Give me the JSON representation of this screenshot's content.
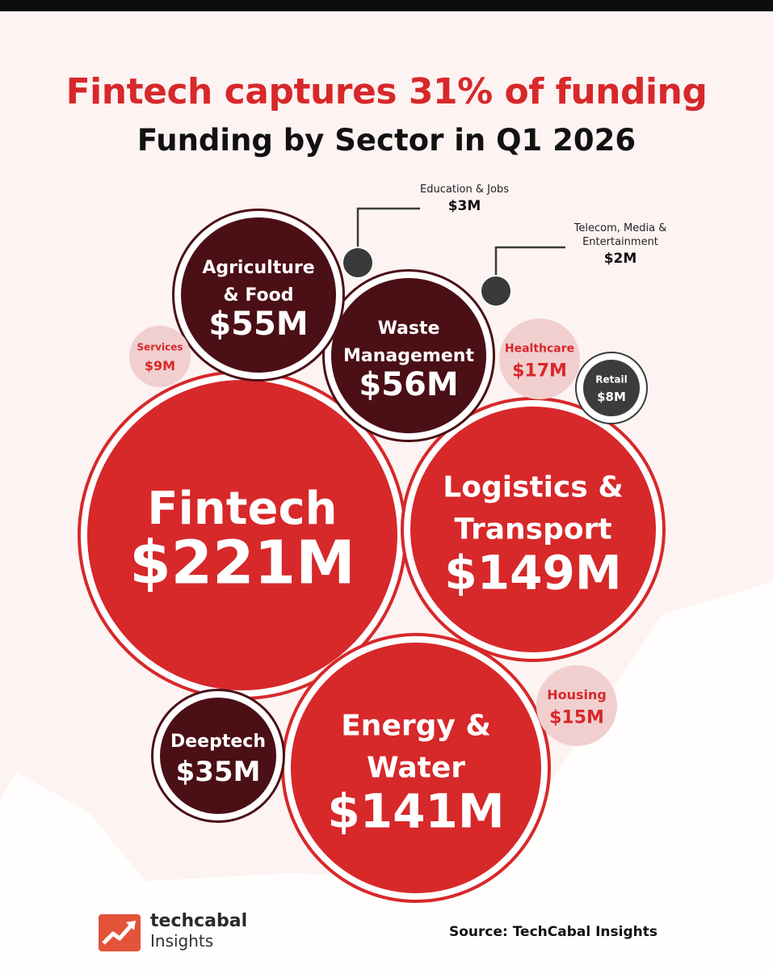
{
  "header": {
    "title": "Fintech captures 31% of funding",
    "subtitle": "Funding by Sector in Q1 2026"
  },
  "colors": {
    "red": "#d7282a",
    "dark": "#4b0f16",
    "pink": "#f2cfcf",
    "grey": "#3c3c3c",
    "title_red": "#d7282a",
    "background": "#fcf3f2"
  },
  "chart_data": {
    "type": "bubble",
    "title": "Fintech captures 31% of funding",
    "subtitle": "Funding by Sector in Q1 2026",
    "unit": "USD millions",
    "sectors": [
      {
        "label": "Fintech",
        "value_label": "$221M",
        "value": 221,
        "style": "red"
      },
      {
        "label": "Logistics & Transport",
        "value_label": "$149M",
        "value": 149,
        "style": "red"
      },
      {
        "label": "Energy & Water",
        "value_label": "$141M",
        "value": 141,
        "style": "red"
      },
      {
        "label": "Waste Management",
        "value_label": "$56M",
        "value": 56,
        "style": "dark"
      },
      {
        "label": "Agriculture & Food",
        "value_label": "$55M",
        "value": 55,
        "style": "dark"
      },
      {
        "label": "Deeptech",
        "value_label": "$35M",
        "value": 35,
        "style": "dark"
      },
      {
        "label": "Healthcare",
        "value_label": "$17M",
        "value": 17,
        "style": "pink"
      },
      {
        "label": "Housing",
        "value_label": "$15M",
        "value": 15,
        "style": "pink"
      },
      {
        "label": "Services",
        "value_label": "$9M",
        "value": 9,
        "style": "pink"
      },
      {
        "label": "Retail",
        "value_label": "$8M",
        "value": 8,
        "style": "grey"
      },
      {
        "label": "Education & Jobs",
        "value_label": "$3M",
        "value": 3,
        "style": "grey"
      },
      {
        "label": "Telecom, Media & Entertainment",
        "value_label": "$2M",
        "value": 2,
        "style": "grey"
      }
    ]
  },
  "footer": {
    "brand_name": "techcabal",
    "brand_sub": "Insights",
    "source": "Source: TechCabal Insights"
  }
}
